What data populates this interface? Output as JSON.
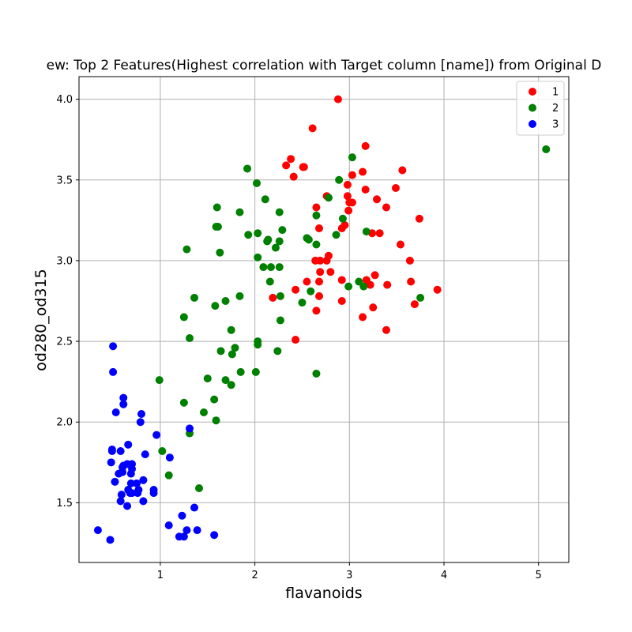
{
  "chart_data": {
    "type": "scatter",
    "title": "ew: Top 2 Features(Highest correlation with Target column [name]) from Original D",
    "xlabel": "flavanoids",
    "ylabel": "od280_od315",
    "xlim": [
      0.14,
      5.32
    ],
    "ylim": [
      1.13,
      4.14
    ],
    "xticks": [
      1,
      2,
      3,
      4,
      5
    ],
    "yticks": [
      1.5,
      2.0,
      2.5,
      3.0,
      3.5,
      4.0
    ],
    "ytick_labels": [
      "1.5",
      "2.0",
      "2.5",
      "3.0",
      "3.5",
      "4.0"
    ],
    "grid": true,
    "legend_position": "top-right",
    "series": [
      {
        "name": "1",
        "color": "#ff0000",
        "points": [
          [
            2.88,
            4.0
          ],
          [
            2.61,
            3.82
          ],
          [
            3.17,
            3.71
          ],
          [
            2.38,
            3.63
          ],
          [
            2.33,
            3.59
          ],
          [
            2.51,
            3.58
          ],
          [
            2.52,
            3.58
          ],
          [
            3.56,
            3.56
          ],
          [
            3.14,
            3.55
          ],
          [
            2.41,
            3.52
          ],
          [
            3.03,
            3.53
          ],
          [
            2.98,
            3.47
          ],
          [
            3.49,
            3.45
          ],
          [
            3.17,
            3.44
          ],
          [
            2.76,
            3.4
          ],
          [
            2.98,
            3.4
          ],
          [
            3.29,
            3.38
          ],
          [
            3.0,
            3.36
          ],
          [
            3.03,
            3.36
          ],
          [
            2.65,
            3.33
          ],
          [
            3.39,
            3.33
          ],
          [
            2.99,
            3.31
          ],
          [
            3.74,
            3.26
          ],
          [
            2.95,
            3.22
          ],
          [
            2.92,
            3.2
          ],
          [
            2.68,
            3.2
          ],
          [
            3.24,
            3.17
          ],
          [
            3.32,
            3.17
          ],
          [
            3.54,
            3.1
          ],
          [
            2.78,
            3.03
          ],
          [
            2.64,
            3.0
          ],
          [
            2.69,
            3.0
          ],
          [
            2.76,
            3.0
          ],
          [
            3.64,
            3.0
          ],
          [
            2.69,
            2.93
          ],
          [
            2.8,
            2.93
          ],
          [
            3.27,
            2.91
          ],
          [
            2.92,
            2.88
          ],
          [
            3.18,
            2.88
          ],
          [
            2.68,
            2.87
          ],
          [
            2.55,
            2.87
          ],
          [
            3.65,
            2.87
          ],
          [
            3.22,
            2.85
          ],
          [
            3.4,
            2.85
          ],
          [
            2.43,
            2.82
          ],
          [
            3.93,
            2.82
          ],
          [
            2.68,
            2.78
          ],
          [
            2.19,
            2.77
          ],
          [
            2.92,
            2.75
          ],
          [
            3.69,
            2.73
          ],
          [
            3.25,
            2.71
          ],
          [
            2.65,
            2.69
          ],
          [
            3.14,
            2.65
          ],
          [
            3.39,
            2.57
          ],
          [
            2.43,
            2.51
          ]
        ]
      },
      {
        "name": "2",
        "color": "#008000",
        "points": [
          [
            5.08,
            3.69
          ],
          [
            3.03,
            3.64
          ],
          [
            1.92,
            3.57
          ],
          [
            2.89,
            3.5
          ],
          [
            2.02,
            3.48
          ],
          [
            2.78,
            3.39
          ],
          [
            2.11,
            3.38
          ],
          [
            1.6,
            3.33
          ],
          [
            2.26,
            3.3
          ],
          [
            1.84,
            3.3
          ],
          [
            2.65,
            3.28
          ],
          [
            2.93,
            3.26
          ],
          [
            1.59,
            3.21
          ],
          [
            1.61,
            3.21
          ],
          [
            2.29,
            3.19
          ],
          [
            3.18,
            3.18
          ],
          [
            2.03,
            3.17
          ],
          [
            1.93,
            3.16
          ],
          [
            2.86,
            3.16
          ],
          [
            2.55,
            3.14
          ],
          [
            2.14,
            3.13
          ],
          [
            2.57,
            3.13
          ],
          [
            2.13,
            3.12
          ],
          [
            2.26,
            3.12
          ],
          [
            2.65,
            3.1
          ],
          [
            2.22,
            3.08
          ],
          [
            1.28,
            3.07
          ],
          [
            1.63,
            3.05
          ],
          [
            2.03,
            3.02
          ],
          [
            2.09,
            2.96
          ],
          [
            2.17,
            2.96
          ],
          [
            2.26,
            2.96
          ],
          [
            2.99,
            2.84
          ],
          [
            3.1,
            2.87
          ],
          [
            3.15,
            2.84
          ],
          [
            2.16,
            2.87
          ],
          [
            2.59,
            2.81
          ],
          [
            1.84,
            2.78
          ],
          [
            2.27,
            2.78
          ],
          [
            3.75,
            2.77
          ],
          [
            1.36,
            2.77
          ],
          [
            1.69,
            2.75
          ],
          [
            2.5,
            2.74
          ],
          [
            1.58,
            2.72
          ],
          [
            1.25,
            2.65
          ],
          [
            2.27,
            2.63
          ],
          [
            1.75,
            2.57
          ],
          [
            1.31,
            2.52
          ],
          [
            2.03,
            2.5
          ],
          [
            2.03,
            2.48
          ],
          [
            1.79,
            2.46
          ],
          [
            1.64,
            2.44
          ],
          [
            2.24,
            2.44
          ],
          [
            1.76,
            2.42
          ],
          [
            1.85,
            2.31
          ],
          [
            2.01,
            2.31
          ],
          [
            2.65,
            2.3
          ],
          [
            1.5,
            2.27
          ],
          [
            0.99,
            2.26
          ],
          [
            1.69,
            2.26
          ],
          [
            1.75,
            2.23
          ],
          [
            1.57,
            2.14
          ],
          [
            1.25,
            2.12
          ],
          [
            1.46,
            2.06
          ],
          [
            1.59,
            2.01
          ],
          [
            1.31,
            1.93
          ],
          [
            1.02,
            1.82
          ],
          [
            1.09,
            1.67
          ],
          [
            1.41,
            1.59
          ]
        ]
      },
      {
        "name": "3",
        "color": "#0000ff",
        "points": [
          [
            0.5,
            2.47
          ],
          [
            0.5,
            2.31
          ],
          [
            0.61,
            2.15
          ],
          [
            0.61,
            2.11
          ],
          [
            0.53,
            2.06
          ],
          [
            0.8,
            2.05
          ],
          [
            0.79,
            2.0
          ],
          [
            1.31,
            1.96
          ],
          [
            0.96,
            1.92
          ],
          [
            0.66,
            1.86
          ],
          [
            0.49,
            1.83
          ],
          [
            0.49,
            1.82
          ],
          [
            0.58,
            1.82
          ],
          [
            0.84,
            1.8
          ],
          [
            1.1,
            1.78
          ],
          [
            0.48,
            1.75
          ],
          [
            0.65,
            1.74
          ],
          [
            0.7,
            1.74
          ],
          [
            0.61,
            1.73
          ],
          [
            0.6,
            1.72
          ],
          [
            0.7,
            1.71
          ],
          [
            0.6,
            1.69
          ],
          [
            0.56,
            1.68
          ],
          [
            0.69,
            1.68
          ],
          [
            0.82,
            1.64
          ],
          [
            0.52,
            1.63
          ],
          [
            0.69,
            1.62
          ],
          [
            0.75,
            1.62
          ],
          [
            0.77,
            1.58
          ],
          [
            0.93,
            1.58
          ],
          [
            0.66,
            1.58
          ],
          [
            0.68,
            1.56
          ],
          [
            0.7,
            1.56
          ],
          [
            0.93,
            1.56
          ],
          [
            0.76,
            1.56
          ],
          [
            0.59,
            1.55
          ],
          [
            0.82,
            1.51
          ],
          [
            0.58,
            1.51
          ],
          [
            0.65,
            1.48
          ],
          [
            1.36,
            1.47
          ],
          [
            1.23,
            1.42
          ],
          [
            1.09,
            1.36
          ],
          [
            0.34,
            1.33
          ],
          [
            1.28,
            1.33
          ],
          [
            1.39,
            1.33
          ],
          [
            1.2,
            1.29
          ],
          [
            1.25,
            1.29
          ],
          [
            1.57,
            1.3
          ],
          [
            0.47,
            1.27
          ]
        ]
      }
    ]
  }
}
